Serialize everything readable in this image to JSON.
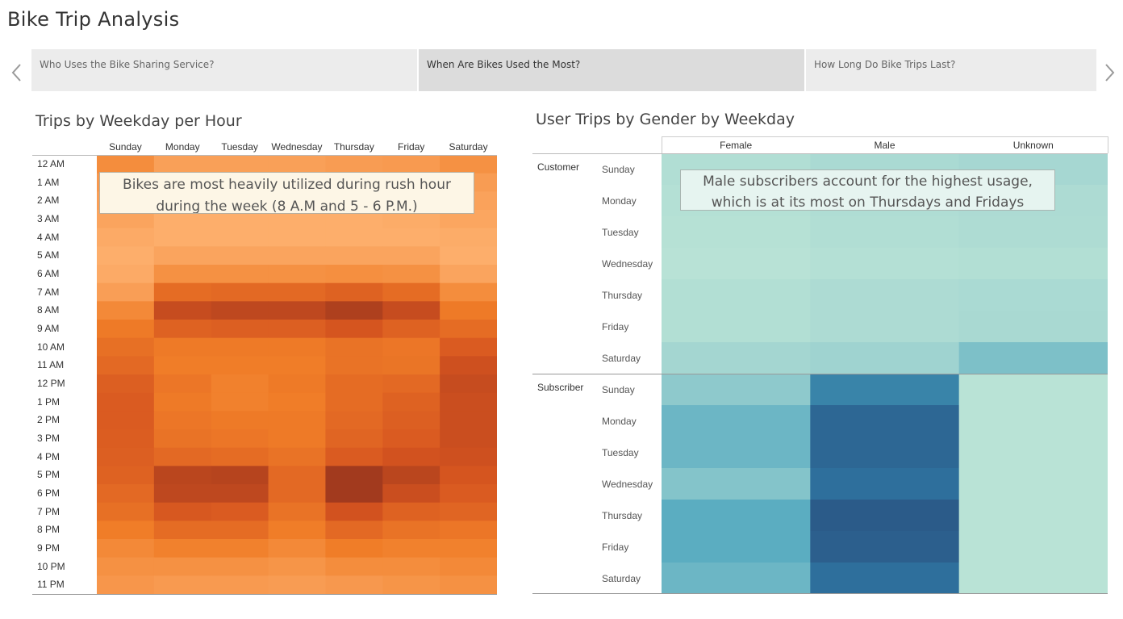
{
  "story": {
    "title": "Bike Trip Analysis",
    "tabs": [
      {
        "label": "Who Uses the Bike Sharing Service?",
        "active": false
      },
      {
        "label": "When Are Bikes Used the Most?",
        "active": true
      },
      {
        "label": "How Long Do Bike Trips Last?",
        "active": false
      }
    ]
  },
  "nav": {
    "prev_icon": "chevron-left-icon",
    "next_icon": "chevron-right-icon"
  },
  "colors": {
    "orange_low": "#fdd49e",
    "orange_high": "#a23a1e",
    "teal_low": "#b9e3d6",
    "teal_high": "#2b5b89",
    "tab_bg": "#ececec",
    "tab_active_bg": "#dcdcdc"
  },
  "chart_data": [
    {
      "type": "heatmap",
      "title": "Trips by Weekday per Hour",
      "x": [
        "Sunday",
        "Monday",
        "Tuesday",
        "Wednesday",
        "Thursday",
        "Friday",
        "Saturday"
      ],
      "y": [
        "12 AM",
        "1 AM",
        "2 AM",
        "3 AM",
        "4 AM",
        "5 AM",
        "6 AM",
        "7 AM",
        "8 AM",
        "9 AM",
        "10 AM",
        "11 AM",
        "12 PM",
        "1 PM",
        "2 PM",
        "3 PM",
        "4 PM",
        "5 PM",
        "6 PM",
        "7 PM",
        "8 PM",
        "9 PM",
        "10 PM",
        "11 PM"
      ],
      "intensity": [
        [
          0.42,
          0.32,
          0.32,
          0.32,
          0.34,
          0.35,
          0.4
        ],
        [
          0.36,
          0.28,
          0.28,
          0.28,
          0.29,
          0.3,
          0.34
        ],
        [
          0.33,
          0.26,
          0.26,
          0.26,
          0.27,
          0.28,
          0.31
        ],
        [
          0.3,
          0.25,
          0.25,
          0.25,
          0.25,
          0.26,
          0.29
        ],
        [
          0.27,
          0.25,
          0.25,
          0.25,
          0.25,
          0.25,
          0.26
        ],
        [
          0.25,
          0.3,
          0.3,
          0.3,
          0.3,
          0.3,
          0.25
        ],
        [
          0.27,
          0.4,
          0.4,
          0.4,
          0.41,
          0.4,
          0.3
        ],
        [
          0.33,
          0.6,
          0.62,
          0.62,
          0.66,
          0.6,
          0.42
        ],
        [
          0.44,
          0.82,
          0.86,
          0.86,
          0.94,
          0.82,
          0.52
        ],
        [
          0.52,
          0.66,
          0.68,
          0.68,
          0.74,
          0.66,
          0.6
        ],
        [
          0.58,
          0.52,
          0.52,
          0.52,
          0.56,
          0.54,
          0.7
        ],
        [
          0.62,
          0.5,
          0.5,
          0.5,
          0.56,
          0.55,
          0.78
        ],
        [
          0.68,
          0.54,
          0.48,
          0.52,
          0.6,
          0.62,
          0.82
        ],
        [
          0.7,
          0.52,
          0.48,
          0.5,
          0.6,
          0.66,
          0.8
        ],
        [
          0.7,
          0.54,
          0.52,
          0.52,
          0.62,
          0.68,
          0.8
        ],
        [
          0.69,
          0.56,
          0.54,
          0.52,
          0.64,
          0.7,
          0.8
        ],
        [
          0.68,
          0.62,
          0.6,
          0.56,
          0.7,
          0.76,
          0.78
        ],
        [
          0.66,
          0.88,
          0.9,
          0.62,
          1.0,
          0.88,
          0.74
        ],
        [
          0.62,
          0.86,
          0.86,
          0.62,
          1.0,
          0.8,
          0.7
        ],
        [
          0.58,
          0.72,
          0.7,
          0.56,
          0.76,
          0.66,
          0.64
        ],
        [
          0.5,
          0.6,
          0.6,
          0.5,
          0.62,
          0.56,
          0.54
        ],
        [
          0.44,
          0.48,
          0.48,
          0.44,
          0.5,
          0.48,
          0.48
        ],
        [
          0.4,
          0.4,
          0.4,
          0.38,
          0.42,
          0.42,
          0.44
        ],
        [
          0.37,
          0.35,
          0.35,
          0.34,
          0.36,
          0.38,
          0.4
        ]
      ],
      "annotation": "Bikes are most heavily utilized during rush hour during the week (8 A.M and 5 - 6 P.M.)"
    },
    {
      "type": "heatmap",
      "title": "User Trips by Gender by Weekday",
      "x": [
        "Female",
        "Male",
        "Unknown"
      ],
      "groups": [
        {
          "name": "Customer",
          "rows": [
            "Sunday",
            "Monday",
            "Tuesday",
            "Wednesday",
            "Thursday",
            "Friday",
            "Saturday"
          ],
          "intensity": [
            [
              0.08,
              0.14,
              0.18
            ],
            [
              0.05,
              0.1,
              0.12
            ],
            [
              0.03,
              0.08,
              0.11
            ],
            [
              0.01,
              0.05,
              0.07
            ],
            [
              0.07,
              0.12,
              0.14
            ],
            [
              0.07,
              0.12,
              0.15
            ],
            [
              0.2,
              0.25,
              0.35
            ]
          ]
        },
        {
          "name": "Subscriber",
          "rows": [
            "Sunday",
            "Monday",
            "Tuesday",
            "Wednesday",
            "Thursday",
            "Friday",
            "Saturday"
          ],
          "intensity": [
            [
              0.3,
              0.65,
              0.0
            ],
            [
              0.4,
              0.85,
              0.0
            ],
            [
              0.4,
              0.85,
              0.0
            ],
            [
              0.33,
              0.75,
              0.0
            ],
            [
              0.45,
              1.0,
              0.0
            ],
            [
              0.45,
              0.95,
              0.0
            ],
            [
              0.4,
              0.75,
              0.0
            ]
          ]
        }
      ],
      "annotation": "Male subscribers account for the highest usage, which is at its most on Thursdays and Fridays"
    }
  ]
}
